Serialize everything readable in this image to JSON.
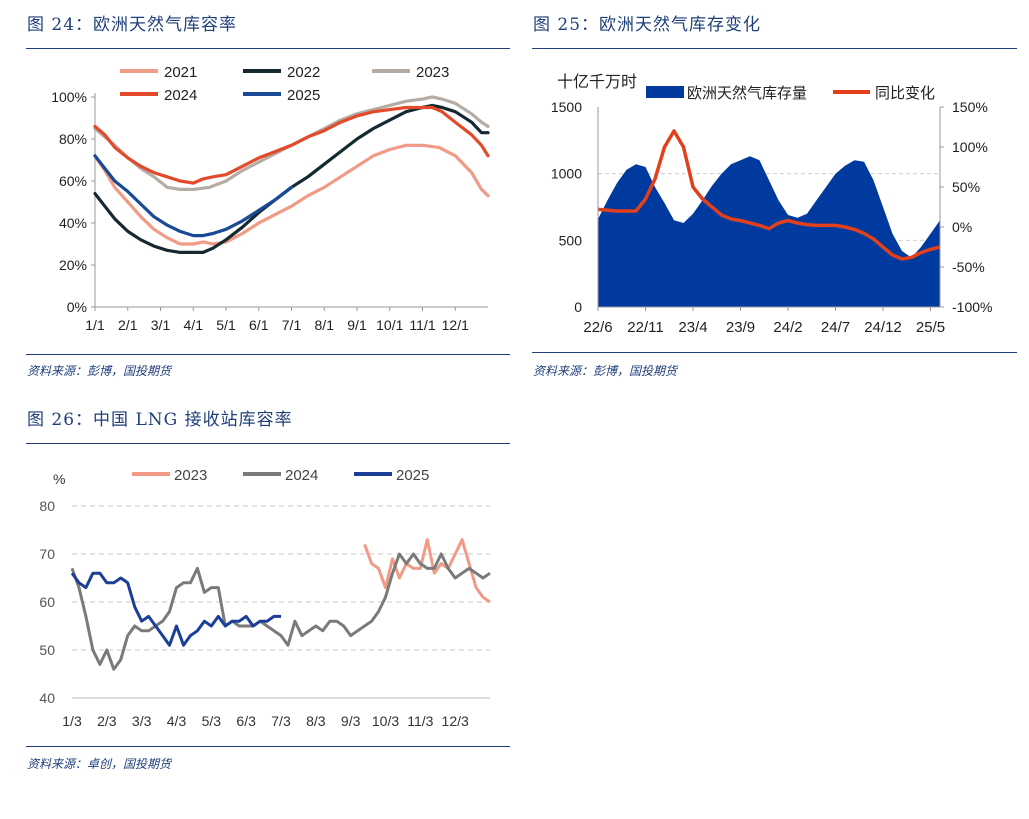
{
  "figures": [
    {
      "title": "图 24：欧洲天然气库容率",
      "source": "资料来源：彭博，国投期货"
    },
    {
      "title": "图 25：欧洲天然气库存变化",
      "source": "资料来源：彭博，国投期货"
    },
    {
      "title": "图 26：中国 LNG 接收站库容率",
      "source": "资料来源：卓创，国投期货"
    }
  ],
  "chart_data": [
    {
      "type": "line",
      "title": "图 24：欧洲天然气库容率",
      "x_ticks": [
        "1/1",
        "2/1",
        "3/1",
        "4/1",
        "5/1",
        "6/1",
        "7/1",
        "8/1",
        "9/1",
        "10/1",
        "11/1",
        "12/1"
      ],
      "y_ticks": [
        "0%",
        "20%",
        "40%",
        "60%",
        "80%",
        "100%"
      ],
      "ylim": [
        0,
        100
      ],
      "xlim": [
        1,
        13
      ],
      "legend_position": "top",
      "series": [
        {
          "name": "2021",
          "color": "#f19a86",
          "x": [
            1,
            1.3,
            1.6,
            2,
            2.4,
            2.8,
            3.2,
            3.6,
            4,
            4.3,
            4.6,
            5,
            5.5,
            6,
            6.5,
            7,
            7.5,
            8,
            8.5,
            9,
            9.5,
            10,
            10.5,
            11,
            11.5,
            12,
            12.5,
            12.8,
            13
          ],
          "y": [
            72,
            65,
            57,
            50,
            43,
            37,
            33,
            30,
            30,
            31,
            30,
            31,
            35,
            40,
            44,
            48,
            53,
            57,
            62,
            67,
            72,
            75,
            77,
            77,
            76,
            72,
            64,
            56,
            53
          ]
        },
        {
          "name": "2022",
          "color": "#152a30",
          "x": [
            1,
            1.3,
            1.6,
            2,
            2.4,
            2.8,
            3.2,
            3.6,
            4,
            4.3,
            4.6,
            5,
            5.5,
            6,
            6.5,
            7,
            7.5,
            8,
            8.5,
            9,
            9.5,
            10,
            10.5,
            11,
            11.3,
            11.6,
            12,
            12.5,
            12.8,
            13
          ],
          "y": [
            54,
            48,
            42,
            36,
            32,
            29,
            27,
            26,
            26,
            26,
            28,
            32,
            38,
            45,
            51,
            57,
            62,
            68,
            74,
            80,
            85,
            89,
            93,
            95,
            96,
            95,
            93,
            88,
            83,
            83
          ]
        },
        {
          "name": "2023",
          "color": "#b5aca4",
          "x": [
            1,
            1.3,
            1.6,
            2,
            2.4,
            2.8,
            3.2,
            3.6,
            4,
            4.5,
            5,
            5.5,
            6,
            6.5,
            7,
            7.5,
            8,
            8.5,
            9,
            9.5,
            10,
            10.5,
            11,
            11.3,
            11.6,
            12,
            12.5,
            12.8,
            13
          ],
          "y": [
            85,
            81,
            77,
            71,
            66,
            62,
            57,
            56,
            56,
            57,
            60,
            65,
            69,
            73,
            77,
            81,
            85,
            89,
            92,
            94,
            96,
            98,
            99,
            100,
            99,
            97,
            92,
            88,
            86
          ]
        },
        {
          "name": "2024",
          "color": "#e24a2b",
          "x": [
            1,
            1.3,
            1.6,
            2,
            2.4,
            2.8,
            3.2,
            3.6,
            4,
            4.3,
            4.6,
            5,
            5.5,
            6,
            6.5,
            7,
            7.5,
            8,
            8.5,
            9,
            9.5,
            10,
            10.5,
            11,
            11.3,
            11.6,
            12,
            12.5,
            12.8,
            13
          ],
          "y": [
            86,
            82,
            76,
            71,
            67,
            64,
            62,
            60,
            59,
            61,
            62,
            63,
            67,
            71,
            74,
            77,
            81,
            84,
            88,
            91,
            93,
            94,
            95,
            95,
            95,
            93,
            88,
            82,
            77,
            72
          ]
        },
        {
          "name": "2025",
          "color": "#1b4a94",
          "x": [
            1,
            1.3,
            1.6,
            2,
            2.4,
            2.8,
            3.2,
            3.6,
            4,
            4.3,
            4.6,
            5,
            5.5,
            6,
            6.5,
            7
          ],
          "y": [
            72,
            66,
            60,
            55,
            49,
            43,
            39,
            36,
            34,
            34,
            35,
            37,
            41,
            46,
            51,
            57
          ]
        }
      ]
    },
    {
      "type": "area",
      "title": "图 25：欧洲天然气库存变化",
      "y_unit": "十亿千万时",
      "x_ticks": [
        "22/6",
        "22/11",
        "23/4",
        "23/9",
        "24/2",
        "24/7",
        "24/12",
        "25/5"
      ],
      "y_left_ticks": [
        "0",
        "500",
        "1000",
        "1500"
      ],
      "y_right_ticks": [
        "-100%",
        "-50%",
        "0%",
        "50%",
        "100%",
        "150%"
      ],
      "ylim_left": [
        0,
        1500
      ],
      "ylim_right": [
        -100,
        150
      ],
      "legend_position": "top",
      "series": [
        {
          "name": "欧洲天然气库存量",
          "kind": "area",
          "axis": "left",
          "color": "#003a9e",
          "x": [
            "22/6",
            "22/7",
            "22/8",
            "22/9",
            "22/10",
            "22/11",
            "22/12",
            "23/1",
            "23/2",
            "23/3",
            "23/4",
            "23/5",
            "23/6",
            "23/7",
            "23/8",
            "23/9",
            "23/10",
            "23/11",
            "23/12",
            "24/1",
            "24/2",
            "24/3",
            "24/4",
            "24/5",
            "24/6",
            "24/7",
            "24/8",
            "24/9",
            "24/10",
            "24/11",
            "24/12",
            "25/1",
            "25/2",
            "25/3",
            "25/4",
            "25/5",
            "25/6"
          ],
          "y": [
            660,
            800,
            930,
            1030,
            1070,
            1050,
            900,
            780,
            650,
            630,
            700,
            800,
            910,
            1000,
            1070,
            1100,
            1130,
            1100,
            950,
            800,
            690,
            670,
            700,
            800,
            900,
            1000,
            1060,
            1100,
            1090,
            950,
            750,
            550,
            420,
            370,
            450,
            550,
            650
          ]
        },
        {
          "name": "同比变化",
          "kind": "line",
          "axis": "right",
          "color": "#e2401d",
          "x": [
            "22/6",
            "22/8",
            "22/10",
            "22/11",
            "22/12",
            "23/1",
            "23/2",
            "23/3",
            "23/4",
            "23/5",
            "23/6",
            "23/7",
            "23/8",
            "23/9",
            "23/10",
            "23/11",
            "23/12",
            "24/1",
            "24/2",
            "24/3",
            "24/4",
            "24/5",
            "24/6",
            "24/7",
            "24/8",
            "24/9",
            "24/10",
            "24/11",
            "24/12",
            "25/1",
            "25/2",
            "25/3",
            "25/4",
            "25/5",
            "25/6"
          ],
          "y": [
            22,
            20,
            20,
            35,
            60,
            100,
            120,
            100,
            50,
            35,
            25,
            15,
            10,
            8,
            5,
            2,
            -2,
            5,
            8,
            5,
            3,
            2,
            2,
            2,
            0,
            -3,
            -8,
            -15,
            -25,
            -35,
            -40,
            -38,
            -32,
            -28,
            -25
          ]
        }
      ]
    },
    {
      "type": "line",
      "title": "图 26：中国 LNG 接收站库容率",
      "y_unit": "%",
      "x_ticks": [
        "1/3",
        "2/3",
        "3/3",
        "4/3",
        "5/3",
        "6/3",
        "7/3",
        "8/3",
        "9/3",
        "10/3",
        "11/3",
        "12/3"
      ],
      "y_ticks": [
        "40",
        "50",
        "60",
        "70",
        "80"
      ],
      "ylim": [
        40,
        80
      ],
      "xlim": [
        1,
        13
      ],
      "grid": "horizontal-dashed",
      "legend_position": "top",
      "series": [
        {
          "name": "2023",
          "color": "#f19a86",
          "x": [
            9.4,
            9.6,
            9.8,
            10,
            10.2,
            10.4,
            10.6,
            10.8,
            11,
            11.2,
            11.4,
            11.6,
            11.8,
            12,
            12.2,
            12.4,
            12.6,
            12.8,
            13
          ],
          "y": [
            72,
            68,
            67,
            63,
            69,
            65,
            68,
            67,
            67,
            73,
            66,
            68,
            67,
            70,
            73,
            68,
            63,
            61,
            60
          ]
        },
        {
          "name": "2024",
          "color": "#7a7a7a",
          "x": [
            1,
            1.2,
            1.4,
            1.6,
            1.8,
            2,
            2.2,
            2.4,
            2.6,
            2.8,
            3,
            3.2,
            3.4,
            3.6,
            3.8,
            4,
            4.2,
            4.4,
            4.6,
            4.8,
            5,
            5.2,
            5.4,
            5.6,
            5.8,
            6,
            6.2,
            6.4,
            6.6,
            6.8,
            7,
            7.2,
            7.4,
            7.6,
            7.8,
            8,
            8.2,
            8.4,
            8.6,
            8.8,
            9,
            9.2,
            9.4,
            9.6,
            9.8,
            10,
            10.2,
            10.4,
            10.6,
            10.8,
            11,
            11.2,
            11.4,
            11.6,
            11.8,
            12,
            12.2,
            12.4,
            12.6,
            12.8,
            13
          ],
          "y": [
            67,
            63,
            57,
            50,
            47,
            50,
            46,
            48,
            53,
            55,
            54,
            54,
            55,
            56,
            58,
            63,
            64,
            64,
            67,
            62,
            63,
            63,
            55,
            56,
            55,
            55,
            55,
            56,
            55,
            54,
            53,
            51,
            56,
            53,
            54,
            55,
            54,
            56,
            56,
            55,
            53,
            54,
            55,
            56,
            58,
            61,
            66,
            70,
            68,
            70,
            68,
            67,
            67,
            70,
            67,
            65,
            66,
            67,
            66,
            65,
            66
          ]
        },
        {
          "name": "2025",
          "color": "#1b3f99",
          "x": [
            1,
            1.2,
            1.4,
            1.6,
            1.8,
            2,
            2.2,
            2.4,
            2.6,
            2.8,
            3,
            3.2,
            3.4,
            3.6,
            3.8,
            4,
            4.2,
            4.4,
            4.6,
            4.8,
            5,
            5.2,
            5.4,
            5.6,
            5.8,
            6,
            6.2,
            6.4,
            6.6,
            6.8,
            7
          ],
          "y": [
            66,
            64,
            63,
            66,
            66,
            64,
            64,
            65,
            64,
            59,
            56,
            57,
            55,
            53,
            51,
            55,
            51,
            53,
            54,
            56,
            55,
            57,
            55,
            56,
            56,
            57,
            55,
            56,
            56,
            57,
            57
          ]
        }
      ]
    }
  ]
}
